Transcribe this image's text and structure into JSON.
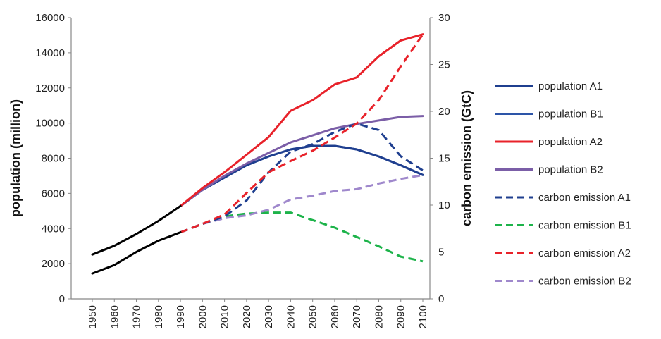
{
  "chart_data": {
    "type": "line",
    "y_left_label": "population (million)",
    "y_right_label": "carbon emission (GtC)",
    "y_left_range": [
      0,
      16000
    ],
    "y_left_ticks": [
      "0",
      "2000",
      "4000",
      "6000",
      "8000",
      "10000",
      "12000",
      "14000",
      "16000"
    ],
    "y_right_range": [
      0,
      30
    ],
    "y_right_ticks": [
      "0",
      "5",
      "10",
      "15",
      "20",
      "25",
      "30"
    ],
    "x_range": [
      1950,
      2100
    ],
    "x_ticks": [
      "1950",
      "1960",
      "1970",
      "1980",
      "1990",
      "2000",
      "2010",
      "2020",
      "2030",
      "2040",
      "2050",
      "2060",
      "2070",
      "2080",
      "2090",
      "2100"
    ],
    "grid": false,
    "legend_position": "right",
    "historical": [
      {
        "axis": "left",
        "color": "#000000",
        "dashed": false,
        "x": [
          1950,
          1960,
          1970,
          1980,
          1990
        ],
        "values": [
          2520,
          3020,
          3690,
          4430,
          5280
        ]
      },
      {
        "axis": "right",
        "color": "#000000",
        "dashed": false,
        "x": [
          1950,
          1960,
          1970,
          1980,
          1990
        ],
        "values": [
          2.7,
          3.6,
          5.0,
          6.2,
          7.1
        ]
      }
    ],
    "series": [
      {
        "name": "population A1",
        "axis": "left",
        "color": "#1f3f8f",
        "dashed": false,
        "x": [
          1990,
          2000,
          2010,
          2020,
          2030,
          2040,
          2050,
          2060,
          2070,
          2080,
          2090,
          2100
        ],
        "values": [
          5280,
          6200,
          6900,
          7600,
          8100,
          8500,
          8700,
          8700,
          8500,
          8100,
          7600,
          7050
        ]
      },
      {
        "name": "population B1",
        "axis": "left",
        "color": "#2d55a8",
        "dashed": false,
        "x": [
          1990,
          2000,
          2010,
          2020,
          2030,
          2040,
          2050,
          2060,
          2070,
          2080,
          2090,
          2100
        ],
        "values": [
          5280,
          6200,
          6900,
          7600,
          8100,
          8500,
          8700,
          8700,
          8500,
          8100,
          7600,
          7050
        ]
      },
      {
        "name": "population A2",
        "axis": "left",
        "color": "#e8222a",
        "dashed": false,
        "x": [
          1990,
          2000,
          2010,
          2020,
          2030,
          2040,
          2050,
          2060,
          2070,
          2080,
          2090,
          2100
        ],
        "values": [
          5280,
          6300,
          7200,
          8200,
          9200,
          10700,
          11300,
          12200,
          12600,
          13800,
          14700,
          15050
        ]
      },
      {
        "name": "population B2",
        "axis": "left",
        "color": "#7b5ea7",
        "dashed": false,
        "x": [
          1990,
          2000,
          2010,
          2020,
          2030,
          2040,
          2050,
          2060,
          2070,
          2080,
          2090,
          2100
        ],
        "values": [
          5280,
          6200,
          7000,
          7700,
          8300,
          8900,
          9300,
          9700,
          9950,
          10150,
          10350,
          10400
        ]
      },
      {
        "name": "carbon emission A1",
        "axis": "right",
        "color": "#1f3f8f",
        "dashed": true,
        "x": [
          1990,
          2000,
          2010,
          2020,
          2030,
          2040,
          2050,
          2060,
          2070,
          2080,
          2090,
          2100
        ],
        "values": [
          7.1,
          8.0,
          8.8,
          10.5,
          13.5,
          15.7,
          16.5,
          17.8,
          18.7,
          18.0,
          15.2,
          13.7
        ]
      },
      {
        "name": "carbon emission B1",
        "axis": "right",
        "color": "#1db34a",
        "dashed": true,
        "x": [
          1990,
          2000,
          2010,
          2020,
          2030,
          2040,
          2050,
          2060,
          2070,
          2080,
          2090,
          2100
        ],
        "values": [
          7.1,
          8.0,
          8.8,
          9.1,
          9.2,
          9.2,
          8.4,
          7.6,
          6.6,
          5.6,
          4.5,
          4.0
        ]
      },
      {
        "name": "carbon emission A2",
        "axis": "right",
        "color": "#e8222a",
        "dashed": true,
        "x": [
          1990,
          2000,
          2010,
          2020,
          2030,
          2040,
          2050,
          2060,
          2070,
          2080,
          2090,
          2100
        ],
        "values": [
          7.1,
          8.0,
          9.0,
          11.3,
          13.5,
          14.7,
          15.8,
          17.2,
          18.7,
          21.2,
          24.8,
          28.2
        ]
      },
      {
        "name": "carbon emission B2",
        "axis": "right",
        "color": "#9f88cc",
        "dashed": true,
        "x": [
          1990,
          2000,
          2010,
          2020,
          2030,
          2040,
          2050,
          2060,
          2070,
          2080,
          2090,
          2100
        ],
        "values": [
          7.1,
          8.0,
          8.6,
          8.9,
          9.5,
          10.6,
          11.0,
          11.5,
          11.7,
          12.3,
          12.8,
          13.2
        ]
      }
    ]
  }
}
